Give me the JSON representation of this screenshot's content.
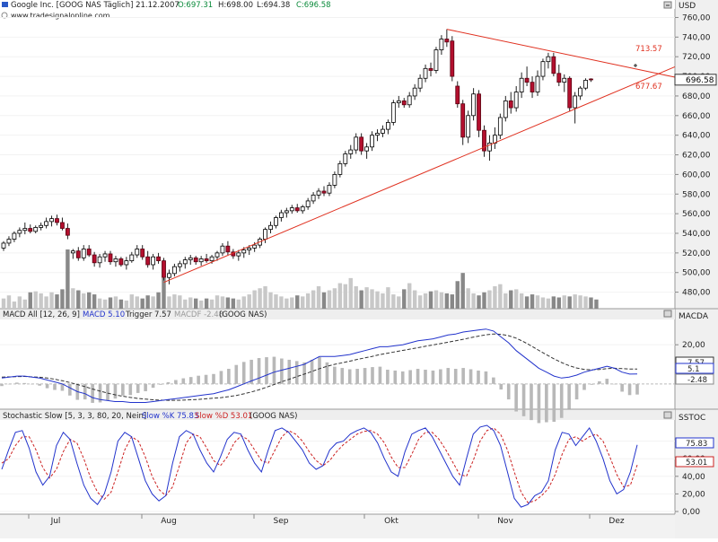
{
  "header": {
    "title": "Google Inc. [GOOG NAS  Täglich] 21.12.2007",
    "open": "O:697.31",
    "high": "H:698.00",
    "low": "L:694.38",
    "close": "C:696.58",
    "website": "www.tradesignalonline.com",
    "currency": "USD"
  },
  "colors": {
    "up_fill": "#ffffff",
    "up_stroke": "#000000",
    "down_fill": "#b30f2e",
    "trendline": "#e0301f",
    "macd_line": "#2233cc",
    "trigger_line": "#333333",
    "volume_dark": "#888888",
    "volume_light": "#c8c8c8",
    "stoch_k": "#2233cc",
    "stoch_d": "#cc2222"
  },
  "price_panel": {
    "last_price": "696.58",
    "trend_labels": [
      "713.57",
      "677.67"
    ],
    "yticks": [
      "760,00",
      "740,00",
      "720,00",
      "700,00",
      "680,00",
      "660,00",
      "640,00",
      "620,00",
      "600,00",
      "580,00",
      "560,00",
      "540,00",
      "520,00",
      "500,00",
      "480,00"
    ]
  },
  "macd_panel": {
    "title": "MACD All [12, 26, 9]",
    "macd_label": "MACD 5.10",
    "trigger_label": "Trigger 7.57",
    "macdf_label": "MACDF -2.48",
    "symbol": "(GOOG NAS)",
    "axis_title": "MACDA",
    "yticks": [
      "20,00"
    ],
    "value_tags": [
      "7.57",
      "5.1",
      "-2.48"
    ]
  },
  "stoch_panel": {
    "title": "Stochastic Slow [5, 3, 3, 80, 20, Nein]",
    "k_label": "Slow %K 75.83",
    "d_label": "Slow %D 53.01",
    "symbol": "(GOOG NAS)",
    "axis_title": "SSTOC",
    "yticks": [
      "80,00",
      "60,00",
      "40,00",
      "20,00",
      "0,00"
    ],
    "value_tags": [
      "75.83",
      "53.01"
    ]
  },
  "x_axis": {
    "months": [
      "Jul",
      "Aug",
      "Sep",
      "Okt",
      "Nov",
      "Dez"
    ]
  },
  "chart_data": {
    "type": "candlestick",
    "instrument": "Google Inc. GOOG NAS",
    "price_ylim": [
      465,
      765
    ],
    "candles": [
      {
        "o": 525,
        "h": 532,
        "l": 522,
        "c": 530
      },
      {
        "o": 530,
        "h": 537,
        "l": 527,
        "c": 534
      },
      {
        "o": 534,
        "h": 542,
        "l": 531,
        "c": 540
      },
      {
        "o": 540,
        "h": 546,
        "l": 536,
        "c": 543
      },
      {
        "o": 543,
        "h": 551,
        "l": 539,
        "c": 545
      },
      {
        "o": 545,
        "h": 549,
        "l": 540,
        "c": 542
      },
      {
        "o": 542,
        "h": 548,
        "l": 540,
        "c": 546
      },
      {
        "o": 546,
        "h": 551,
        "l": 543,
        "c": 548
      },
      {
        "o": 548,
        "h": 556,
        "l": 545,
        "c": 552
      },
      {
        "o": 552,
        "h": 558,
        "l": 547,
        "c": 555
      },
      {
        "o": 555,
        "h": 559,
        "l": 548,
        "c": 551
      },
      {
        "o": 551,
        "h": 556,
        "l": 543,
        "c": 545
      },
      {
        "o": 545,
        "h": 550,
        "l": 534,
        "c": 538
      },
      {
        "o": 520,
        "h": 524,
        "l": 514,
        "c": 522
      },
      {
        "o": 522,
        "h": 526,
        "l": 512,
        "c": 515
      },
      {
        "o": 515,
        "h": 528,
        "l": 512,
        "c": 524
      },
      {
        "o": 524,
        "h": 528,
        "l": 516,
        "c": 518
      },
      {
        "o": 518,
        "h": 521,
        "l": 506,
        "c": 510
      },
      {
        "o": 510,
        "h": 519,
        "l": 505,
        "c": 516
      },
      {
        "o": 516,
        "h": 522,
        "l": 511,
        "c": 519
      },
      {
        "o": 519,
        "h": 522,
        "l": 508,
        "c": 511
      },
      {
        "o": 511,
        "h": 517,
        "l": 506,
        "c": 514
      },
      {
        "o": 514,
        "h": 516,
        "l": 506,
        "c": 508
      },
      {
        "o": 508,
        "h": 516,
        "l": 503,
        "c": 512
      },
      {
        "o": 512,
        "h": 521,
        "l": 510,
        "c": 518
      },
      {
        "o": 518,
        "h": 528,
        "l": 515,
        "c": 524
      },
      {
        "o": 524,
        "h": 528,
        "l": 513,
        "c": 516
      },
      {
        "o": 516,
        "h": 522,
        "l": 505,
        "c": 508
      },
      {
        "o": 508,
        "h": 519,
        "l": 503,
        "c": 516
      },
      {
        "o": 516,
        "h": 520,
        "l": 509,
        "c": 512
      },
      {
        "o": 512,
        "h": 515,
        "l": 492,
        "c": 495
      },
      {
        "o": 495,
        "h": 503,
        "l": 488,
        "c": 499
      },
      {
        "o": 499,
        "h": 509,
        "l": 496,
        "c": 506
      },
      {
        "o": 506,
        "h": 512,
        "l": 501,
        "c": 509
      },
      {
        "o": 509,
        "h": 516,
        "l": 504,
        "c": 513
      },
      {
        "o": 513,
        "h": 518,
        "l": 508,
        "c": 515
      },
      {
        "o": 515,
        "h": 517,
        "l": 508,
        "c": 511
      },
      {
        "o": 511,
        "h": 517,
        "l": 507,
        "c": 514
      },
      {
        "o": 514,
        "h": 519,
        "l": 510,
        "c": 512
      },
      {
        "o": 512,
        "h": 518,
        "l": 509,
        "c": 516
      },
      {
        "o": 516,
        "h": 522,
        "l": 512,
        "c": 520
      },
      {
        "o": 520,
        "h": 530,
        "l": 517,
        "c": 527
      },
      {
        "o": 527,
        "h": 532,
        "l": 518,
        "c": 521
      },
      {
        "o": 521,
        "h": 524,
        "l": 514,
        "c": 517
      },
      {
        "o": 517,
        "h": 523,
        "l": 512,
        "c": 520
      },
      {
        "o": 520,
        "h": 526,
        "l": 515,
        "c": 523
      },
      {
        "o": 523,
        "h": 528,
        "l": 518,
        "c": 525
      },
      {
        "o": 525,
        "h": 531,
        "l": 521,
        "c": 528
      },
      {
        "o": 528,
        "h": 536,
        "l": 525,
        "c": 534
      },
      {
        "o": 534,
        "h": 546,
        "l": 530,
        "c": 544
      },
      {
        "o": 544,
        "h": 552,
        "l": 540,
        "c": 548
      },
      {
        "o": 548,
        "h": 558,
        "l": 545,
        "c": 556
      },
      {
        "o": 556,
        "h": 564,
        "l": 552,
        "c": 561
      },
      {
        "o": 561,
        "h": 566,
        "l": 556,
        "c": 563
      },
      {
        "o": 563,
        "h": 569,
        "l": 560,
        "c": 566
      },
      {
        "o": 566,
        "h": 570,
        "l": 561,
        "c": 563
      },
      {
        "o": 563,
        "h": 569,
        "l": 560,
        "c": 567
      },
      {
        "o": 567,
        "h": 576,
        "l": 564,
        "c": 573
      },
      {
        "o": 573,
        "h": 582,
        "l": 570,
        "c": 579
      },
      {
        "o": 579,
        "h": 586,
        "l": 575,
        "c": 583
      },
      {
        "o": 583,
        "h": 588,
        "l": 578,
        "c": 581
      },
      {
        "o": 581,
        "h": 592,
        "l": 578,
        "c": 589
      },
      {
        "o": 589,
        "h": 603,
        "l": 586,
        "c": 600
      },
      {
        "o": 600,
        "h": 614,
        "l": 597,
        "c": 611
      },
      {
        "o": 611,
        "h": 624,
        "l": 608,
        "c": 621
      },
      {
        "o": 621,
        "h": 630,
        "l": 616,
        "c": 625
      },
      {
        "o": 625,
        "h": 642,
        "l": 621,
        "c": 638
      },
      {
        "o": 638,
        "h": 642,
        "l": 620,
        "c": 624
      },
      {
        "o": 624,
        "h": 632,
        "l": 616,
        "c": 628
      },
      {
        "o": 628,
        "h": 644,
        "l": 624,
        "c": 640
      },
      {
        "o": 640,
        "h": 646,
        "l": 634,
        "c": 642
      },
      {
        "o": 642,
        "h": 650,
        "l": 638,
        "c": 646
      },
      {
        "o": 646,
        "h": 656,
        "l": 641,
        "c": 653
      },
      {
        "o": 653,
        "h": 676,
        "l": 650,
        "c": 673
      },
      {
        "o": 673,
        "h": 680,
        "l": 668,
        "c": 675
      },
      {
        "o": 675,
        "h": 678,
        "l": 668,
        "c": 671
      },
      {
        "o": 671,
        "h": 684,
        "l": 668,
        "c": 680
      },
      {
        "o": 680,
        "h": 692,
        "l": 676,
        "c": 688
      },
      {
        "o": 688,
        "h": 702,
        "l": 684,
        "c": 698
      },
      {
        "o": 698,
        "h": 712,
        "l": 694,
        "c": 708
      },
      {
        "o": 708,
        "h": 714,
        "l": 700,
        "c": 706
      },
      {
        "o": 706,
        "h": 730,
        "l": 703,
        "c": 727
      },
      {
        "o": 727,
        "h": 742,
        "l": 722,
        "c": 738
      },
      {
        "o": 738,
        "h": 748,
        "l": 730,
        "c": 735
      },
      {
        "o": 736,
        "h": 741,
        "l": 695,
        "c": 700
      },
      {
        "o": 690,
        "h": 695,
        "l": 668,
        "c": 672
      },
      {
        "o": 672,
        "h": 676,
        "l": 630,
        "c": 638
      },
      {
        "o": 638,
        "h": 665,
        "l": 632,
        "c": 660
      },
      {
        "o": 660,
        "h": 688,
        "l": 655,
        "c": 682
      },
      {
        "o": 682,
        "h": 686,
        "l": 638,
        "c": 645
      },
      {
        "o": 645,
        "h": 650,
        "l": 618,
        "c": 624
      },
      {
        "o": 624,
        "h": 640,
        "l": 614,
        "c": 632
      },
      {
        "o": 632,
        "h": 648,
        "l": 626,
        "c": 640
      },
      {
        "o": 640,
        "h": 662,
        "l": 636,
        "c": 658
      },
      {
        "o": 658,
        "h": 680,
        "l": 654,
        "c": 675
      },
      {
        "o": 675,
        "h": 684,
        "l": 662,
        "c": 668
      },
      {
        "o": 668,
        "h": 690,
        "l": 664,
        "c": 684
      },
      {
        "o": 684,
        "h": 704,
        "l": 678,
        "c": 698
      },
      {
        "o": 698,
        "h": 710,
        "l": 690,
        "c": 694
      },
      {
        "o": 694,
        "h": 700,
        "l": 678,
        "c": 684
      },
      {
        "o": 684,
        "h": 706,
        "l": 680,
        "c": 700
      },
      {
        "o": 700,
        "h": 718,
        "l": 696,
        "c": 715
      },
      {
        "o": 715,
        "h": 724,
        "l": 708,
        "c": 720
      },
      {
        "o": 720,
        "h": 724,
        "l": 700,
        "c": 703
      },
      {
        "o": 703,
        "h": 712,
        "l": 690,
        "c": 694
      },
      {
        "o": 694,
        "h": 702,
        "l": 684,
        "c": 698
      },
      {
        "o": 698,
        "h": 700,
        "l": 664,
        "c": 668
      },
      {
        "o": 668,
        "h": 684,
        "l": 652,
        "c": 680
      },
      {
        "o": 680,
        "h": 690,
        "l": 676,
        "c": 688
      },
      {
        "o": 688,
        "h": 698,
        "l": 686,
        "c": 696
      },
      {
        "o": 697.31,
        "h": 698,
        "l": 694.38,
        "c": 696.58
      }
    ],
    "volume": [
      10,
      13,
      7,
      12,
      9,
      16,
      17,
      15,
      12,
      16,
      14,
      19,
      58,
      20,
      18,
      15,
      16,
      14,
      10,
      9,
      11,
      12,
      9,
      8,
      14,
      12,
      10,
      13,
      12,
      16,
      30,
      12,
      14,
      13,
      9,
      11,
      10,
      8,
      10,
      9,
      13,
      12,
      11,
      10,
      9,
      12,
      14,
      18,
      20,
      22,
      16,
      14,
      12,
      10,
      11,
      13,
      12,
      15,
      18,
      22,
      16,
      18,
      20,
      25,
      24,
      30,
      22,
      18,
      21,
      19,
      17,
      15,
      21,
      14,
      12,
      19,
      25,
      18,
      13,
      15,
      17,
      18,
      16,
      15,
      14,
      27,
      35,
      20,
      15,
      13,
      16,
      18,
      22,
      24,
      15,
      18,
      19,
      15,
      12,
      14,
      13,
      11,
      10,
      12,
      11,
      13,
      12,
      14,
      13,
      12,
      11,
      9
    ],
    "trendlines": [
      {
        "label": "713.57",
        "from_bar": 83,
        "from_price": 748,
        "to_bar": 118,
        "to_price": 708
      },
      {
        "label": "677.67",
        "from_bar": 30,
        "from_price": 490,
        "to_bar": 118,
        "to_price": 692
      }
    ],
    "macd": {
      "macd_ylim": [
        -12,
        32
      ],
      "macd": [
        3,
        3.5,
        4,
        4,
        3.5,
        3,
        2,
        1,
        0,
        -2,
        -4,
        -5,
        -7,
        -8,
        -8.5,
        -9,
        -9,
        -9.5,
        -9.5,
        -9.5,
        -9,
        -8.5,
        -8,
        -7.5,
        -7,
        -6.5,
        -6,
        -5.5,
        -5,
        -4,
        -3,
        -1.5,
        0,
        1.5,
        3,
        4.5,
        6,
        7,
        8,
        9,
        10,
        12,
        14,
        14,
        14,
        14.5,
        15,
        16,
        17,
        18,
        19,
        19,
        19.5,
        20,
        21,
        22,
        22.5,
        23,
        24,
        25,
        25.5,
        26.5,
        27,
        27.5,
        28,
        27,
        24,
        21,
        17,
        14,
        11,
        8,
        6,
        4,
        3,
        3.5,
        4.5,
        6,
        7,
        8,
        9,
        8,
        6,
        5,
        5.1
      ],
      "trigger": [
        3.5,
        3.6,
        3.7,
        3.8,
        3.6,
        3.4,
        3,
        2.4,
        1.6,
        0.7,
        -0.3,
        -1.4,
        -2.6,
        -3.7,
        -4.7,
        -5.6,
        -6.3,
        -6.9,
        -7.4,
        -7.8,
        -8.1,
        -8.3,
        -8.4,
        -8.4,
        -8.3,
        -8.1,
        -7.9,
        -7.6,
        -7.3,
        -7,
        -6.5,
        -5.9,
        -5.1,
        -4.1,
        -3,
        -1.7,
        -0.3,
        1.1,
        2.4,
        3.7,
        5,
        6.4,
        7.8,
        9,
        10,
        10.8,
        11.6,
        12.5,
        13.3,
        14.1,
        15,
        15.7,
        16.4,
        17.1,
        17.8,
        18.5,
        19.2,
        19.9,
        20.6,
        21.3,
        22,
        22.8,
        23.6,
        24.4,
        25.1,
        25.5,
        25.3,
        24.6,
        23.4,
        21.5,
        19.4,
        17.1,
        14.9,
        12.8,
        10.9,
        9.3,
        8.1,
        7.4,
        7.2,
        7.4,
        7.8,
        8.0,
        7.8,
        7.6,
        7.57
      ]
    },
    "stochastic": {
      "stoch_ylim": [
        0,
        100
      ],
      "k": [
        48,
        70,
        90,
        92,
        72,
        45,
        30,
        40,
        75,
        90,
        82,
        55,
        30,
        15,
        8,
        20,
        45,
        80,
        90,
        85,
        60,
        35,
        20,
        12,
        18,
        55,
        85,
        92,
        88,
        70,
        55,
        45,
        62,
        82,
        90,
        88,
        70,
        55,
        45,
        70,
        92,
        95,
        90,
        80,
        70,
        55,
        48,
        52,
        70,
        78,
        80,
        88,
        92,
        95,
        90,
        78,
        60,
        45,
        40,
        68,
        88,
        92,
        95,
        85,
        70,
        55,
        40,
        30,
        60,
        88,
        96,
        98,
        92,
        75,
        45,
        15,
        5,
        8,
        18,
        22,
        35,
        70,
        90,
        88,
        75,
        85,
        95,
        80,
        60,
        35,
        20,
        25,
        45,
        75.83
      ],
      "d": [
        55,
        60,
        75,
        85,
        85,
        70,
        50,
        38,
        48,
        68,
        82,
        78,
        60,
        38,
        22,
        14,
        22,
        45,
        70,
        85,
        80,
        62,
        40,
        25,
        18,
        28,
        52,
        78,
        88,
        85,
        72,
        58,
        52,
        62,
        78,
        86,
        82,
        70,
        58,
        55,
        70,
        85,
        92,
        88,
        80,
        68,
        58,
        52,
        58,
        68,
        76,
        82,
        88,
        91,
        92,
        88,
        78,
        62,
        50,
        50,
        65,
        82,
        90,
        90,
        82,
        70,
        56,
        42,
        40,
        58,
        80,
        92,
        95,
        88,
        70,
        45,
        22,
        10,
        12,
        18,
        26,
        42,
        65,
        82,
        85,
        80,
        85,
        88,
        80,
        62,
        42,
        28,
        30,
        53.01
      ]
    }
  }
}
